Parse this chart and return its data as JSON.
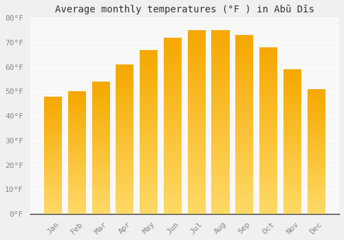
{
  "title": "Average monthly temperatures (°F ) in Abū Dīs",
  "months": [
    "Jan",
    "Feb",
    "Mar",
    "Apr",
    "May",
    "Jun",
    "Jul",
    "Aug",
    "Sep",
    "Oct",
    "Nov",
    "Dec"
  ],
  "values": [
    48,
    50,
    54,
    61,
    67,
    72,
    75,
    75,
    73,
    68,
    59,
    51
  ],
  "bar_color_top": "#F5A800",
  "bar_color_bottom": "#FFD966",
  "ylim": [
    0,
    80
  ],
  "yticks": [
    0,
    10,
    20,
    30,
    40,
    50,
    60,
    70,
    80
  ],
  "ytick_labels": [
    "0°F",
    "10°F",
    "20°F",
    "30°F",
    "40°F",
    "50°F",
    "60°F",
    "70°F",
    "80°F"
  ],
  "background_color": "#F0F0F0",
  "plot_bg_color": "#F8F8F8",
  "grid_color": "#FFFFFF",
  "title_fontsize": 10,
  "tick_fontsize": 8,
  "bar_width": 0.75
}
